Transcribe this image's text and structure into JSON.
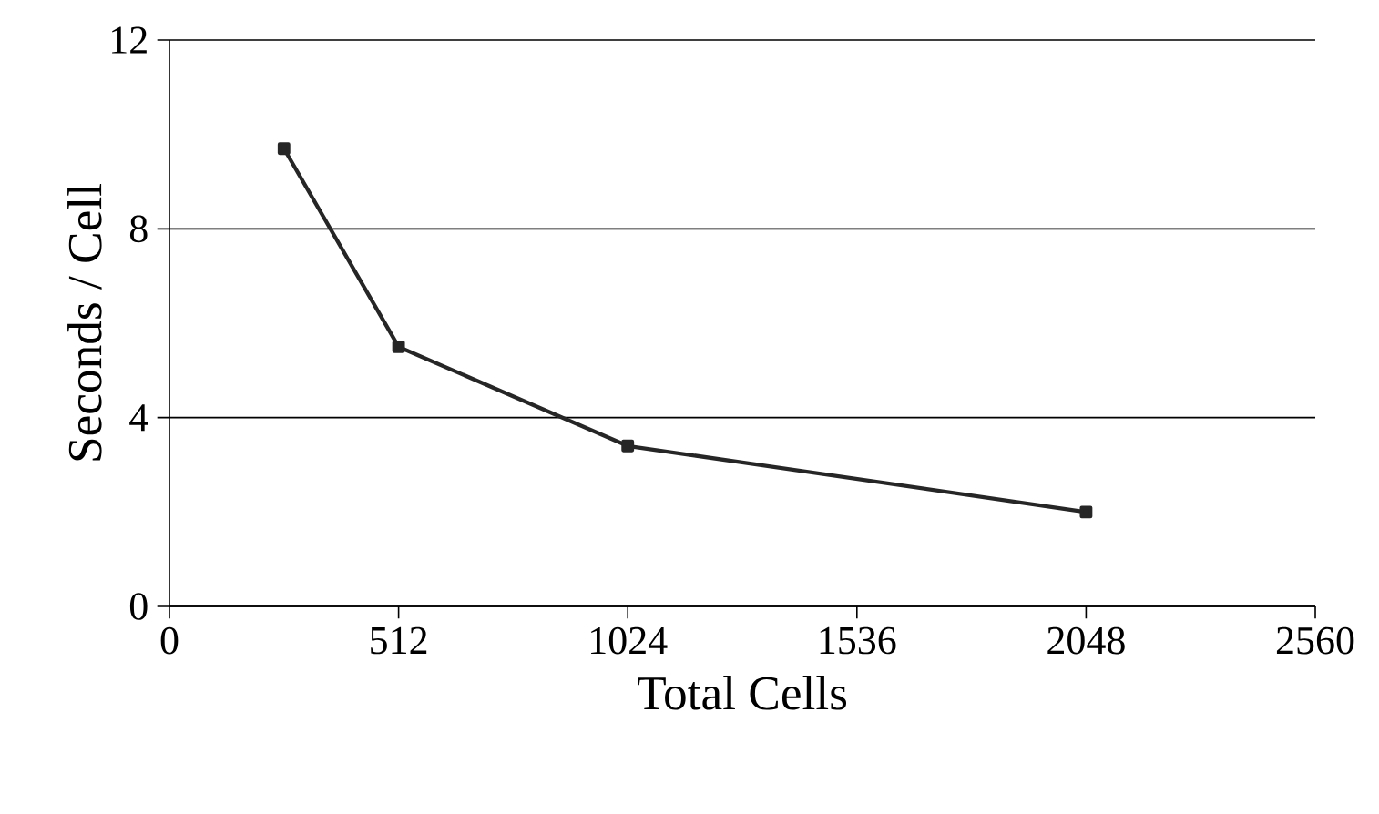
{
  "chart_data": {
    "type": "line",
    "xlabel": "Total Cells",
    "ylabel": "Seconds / Cell",
    "x": [
      256,
      512,
      1024,
      2048
    ],
    "series": [
      {
        "color": "#262626",
        "values": [
          9.7,
          5.5,
          3.4,
          2.0
        ]
      }
    ],
    "xlim": [
      0,
      2560
    ],
    "xticks": [
      0,
      512,
      1024,
      1536,
      2048,
      2560
    ],
    "ylim": [
      0,
      12
    ],
    "yticks": [
      0,
      4,
      8,
      12
    ],
    "grid": "y",
    "marker": "square",
    "line_style": "solid"
  }
}
